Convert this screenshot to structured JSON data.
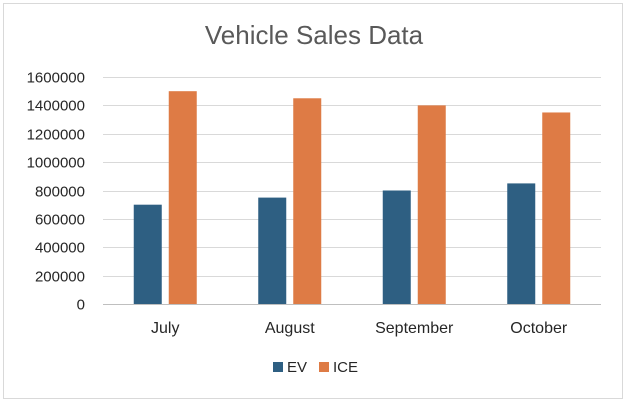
{
  "chart_data": {
    "type": "bar",
    "title": "Vehicle Sales Data",
    "categories": [
      "July",
      "August",
      "September",
      "October"
    ],
    "series": [
      {
        "name": "EV",
        "color": "#2e5f82",
        "values": [
          700000,
          750000,
          800000,
          850000
        ]
      },
      {
        "name": "ICE",
        "color": "#de7b45",
        "values": [
          1500000,
          1450000,
          1400000,
          1350000
        ]
      }
    ],
    "ylim": [
      0,
      1600000
    ],
    "yticks": [
      "0",
      "200000",
      "400000",
      "600000",
      "800000",
      "1000000",
      "1200000",
      "1400000",
      "1600000"
    ],
    "grid": true,
    "legend_position": "bottom"
  }
}
